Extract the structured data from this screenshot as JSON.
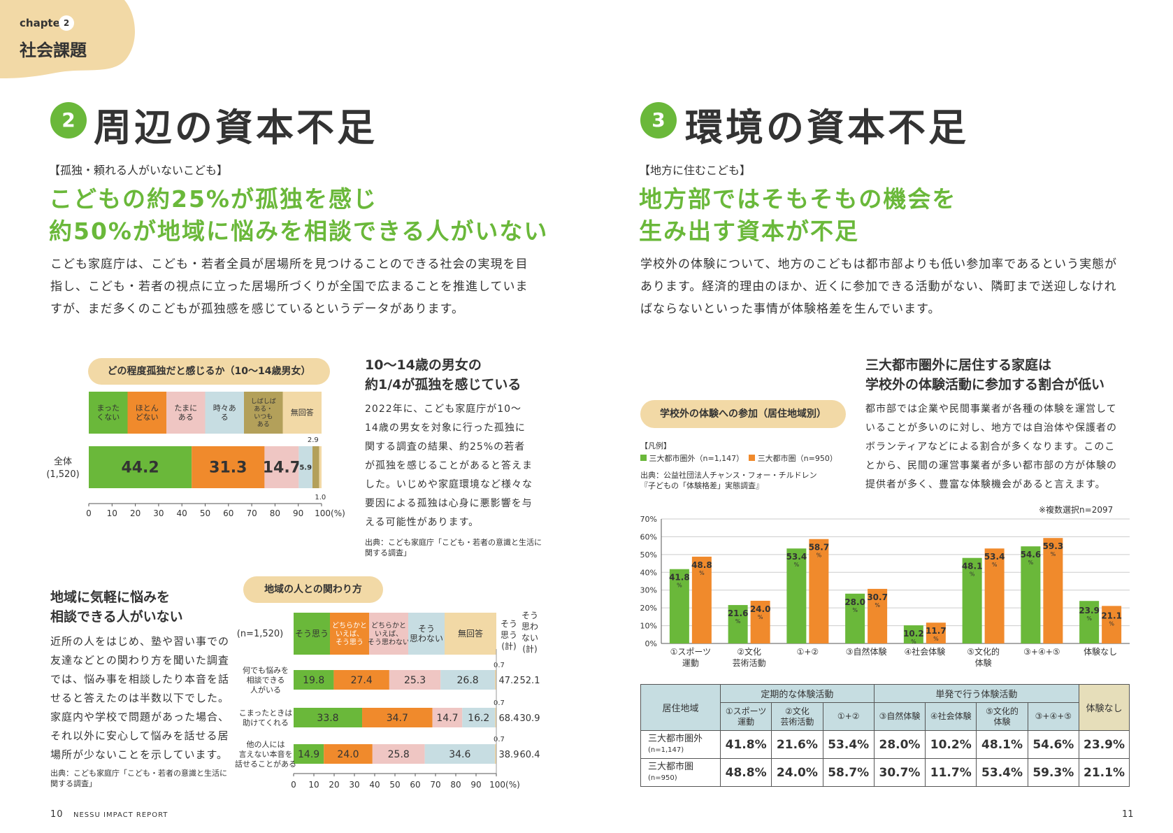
{
  "chapter": {
    "label": "chapter",
    "number": "2",
    "title": "社会課題"
  },
  "left": {
    "section_number": "2",
    "heading": "周辺の資本不足",
    "tag": "【孤独・頼れる人がいないこども】",
    "headline": [
      "こどもの約25%が孤独を感じ",
      "約50%が地域に悩みを相談できる人がいない"
    ],
    "body": [
      "こども家庭庁は、こども・若者全員が居場所を見つけることのできる社会の実現を目",
      "指し、こども・若者の視点に立った居場所づくりが全国で広まることを推進していま",
      "すが、まだ多くのこどもが孤独感を感じているというデータがあります。"
    ],
    "loneliness": {
      "pill": "どの程度孤独だと感じるか（10〜14歳男女）",
      "subhead": [
        "10〜14歳の男女の",
        "約1/4が孤独を感じている"
      ],
      "text": [
        "2022年に、こども家庭庁が10〜",
        "14歳の男女を対象に行った孤独に",
        "関する調査の結果、約25%の若者",
        "が孤独を感じることがあると答えま",
        "した。いじめや家庭環境など様々な",
        "要因による孤独は心身に悪影響を与",
        "える可能性があります。"
      ],
      "source": [
        "出典：こども家庭庁「こども・若者の意識と生活に",
        "関する調査」"
      ]
    },
    "community": {
      "pill": "地域の人との関わり方",
      "subhead": [
        "地域に気軽に悩みを",
        "相談できる人がいない"
      ],
      "text": [
        "近所の人をはじめ、塾や習い事での",
        "友達などとの関わり方を聞いた調査",
        "では、悩み事を相談したり本音を話",
        "せると答えたのは半数以下でした。",
        "家庭内や学校で問題があった場合、",
        "それ以外に安心して悩みを話せる居",
        "場所が少ないことを示しています。"
      ],
      "source": [
        "出典：こども家庭庁「こども・若者の意識と生活に",
        "関する調査」"
      ]
    }
  },
  "right": {
    "section_number": "3",
    "heading": "環境の資本不足",
    "tag": "【地方に住むこども】",
    "headline": [
      "地方部ではそもそもの機会を",
      "生み出す資本が不足"
    ],
    "body": [
      "学校外の体験について、地方のこどもは都市部よりも低い参加率であるという実態が",
      "あります。経済的理由のほか、近くに参加できる活動がない、隣町まで送迎しなけれ",
      "ばならないといった事情が体験格差を生んでいます。"
    ],
    "pill": "学校外の体験への参加（居住地域別）",
    "subhead": [
      "三大都市圏外に居住する家庭は",
      "学校外の体験活動に参加する割合が低い"
    ],
    "text": [
      "都市部では企業や民間事業者が各種の体験を運営して",
      "いることが多いのに対し、地方では自治体や保護者の",
      "ボランティアなどによる割合が多くなります。このこ",
      "とから、民間の運営事業者が多い都市部の方が体験の",
      "提供者が多く、豊富な体験機会があると言えます。"
    ],
    "legend_title": "【凡例】",
    "legend": [
      "三大都市圏外（n=1,147）",
      "三大都市圏（n=950）"
    ],
    "source": [
      "出典：公益社団法人チャンス・フォー・チルドレン",
      "『子どもの「体験格差」実態調査』"
    ],
    "note": "※複数選択n=2097",
    "table": {
      "col_region": "居住地域",
      "group_regular": "定期的な体験活動",
      "group_oneoff": "単発で行う体験活動",
      "col_none": "体験なし",
      "cols": [
        "①スポーツ\n運動",
        "②文化\n芸術活動",
        "①+②",
        "③自然体験",
        "④社会体験",
        "⑤文化的\n体験",
        "③+④+⑤"
      ],
      "rows": [
        {
          "label": "三大都市圏外",
          "n": "(n=1,147)",
          "values": [
            "41.8%",
            "21.6%",
            "53.4%",
            "28.0%",
            "10.2%",
            "48.1%",
            "54.6%",
            "23.9%"
          ]
        },
        {
          "label": "三大都市圏",
          "n": "(n=950)",
          "values": [
            "48.8%",
            "24.0%",
            "58.7%",
            "30.7%",
            "11.7%",
            "53.4%",
            "59.3%",
            "21.1%"
          ]
        }
      ]
    }
  },
  "footer": {
    "left_page": "10",
    "report": "NESSU IMPACT REPORT",
    "right_page": "11"
  },
  "colors": {
    "green": "#6ab83a",
    "orange": "#f08a2c",
    "pink": "#efc6c3",
    "blue": "#c7dde2",
    "olive": "#b3a05a",
    "beige": "#f2d9a6"
  },
  "chart_data": [
    {
      "type": "bar",
      "title": "どの程度孤独だと感じるか（10〜14歳男女）",
      "stacked": true,
      "orientation": "horizontal",
      "categories": [
        "まったくない",
        "ほとんどない",
        "たまにある",
        "時々ある",
        "しばしばある・いつもある",
        "無回答"
      ],
      "row_label": "全体",
      "row_n": "(1,520)",
      "values": [
        44.2,
        31.3,
        14.7,
        5.9,
        2.9,
        1.0
      ],
      "xlim": [
        0,
        100
      ],
      "xticks": [
        "0",
        "10",
        "20",
        "30",
        "40",
        "50",
        "60",
        "70",
        "80",
        "90",
        "100(%)"
      ]
    },
    {
      "type": "bar",
      "title": "地域の人との関わり方",
      "stacked": true,
      "orientation": "horizontal",
      "n_label": "(n=1,520)",
      "categories": [
        "そう思う",
        "どちらかといえば、そう思う",
        "どちらかといえば、そう思わない",
        "そう思わない",
        "無回答"
      ],
      "sum_headers": [
        "そう思う(計)",
        "そう思わない(計)"
      ],
      "rows": [
        {
          "label": "何でも悩みを相談できる人がいる",
          "values": [
            19.8,
            27.4,
            25.3,
            26.8,
            0.7
          ],
          "sums": [
            "47.2",
            "52.1"
          ]
        },
        {
          "label": "こまったときは助けてくれる",
          "values": [
            33.8,
            34.7,
            14.7,
            16.2,
            0.7
          ],
          "sums": [
            "68.4",
            "30.9"
          ]
        },
        {
          "label": "他の人には言えない本音を話せることがある",
          "values": [
            14.9,
            24.0,
            25.8,
            34.6,
            0.7
          ],
          "sums": [
            "38.9",
            "60.4"
          ]
        }
      ],
      "xlim": [
        0,
        100
      ],
      "xticks": [
        "0",
        "10",
        "20",
        "30",
        "40",
        "50",
        "60",
        "70",
        "80",
        "90",
        "100(%)"
      ]
    },
    {
      "type": "bar",
      "title": "学校外の体験への参加（居住地域別）",
      "categories": [
        "①スポーツ運動",
        "②文化芸術活動",
        "①+②",
        "③自然体験",
        "④社会体験",
        "⑤文化的体験",
        "③+④+⑤",
        "体験なし"
      ],
      "series": [
        {
          "name": "三大都市圏外（n=1,147）",
          "values": [
            41.8,
            21.6,
            53.4,
            28.0,
            10.2,
            48.1,
            54.6,
            23.9
          ]
        },
        {
          "name": "三大都市圏（n=950）",
          "values": [
            48.8,
            24.0,
            58.7,
            30.7,
            11.7,
            53.4,
            59.3,
            21.1
          ]
        }
      ],
      "ylim": [
        0,
        70
      ],
      "yticks": [
        "0%",
        "10%",
        "20%",
        "30%",
        "40%",
        "50%",
        "60%",
        "70%"
      ],
      "grid": true
    }
  ]
}
